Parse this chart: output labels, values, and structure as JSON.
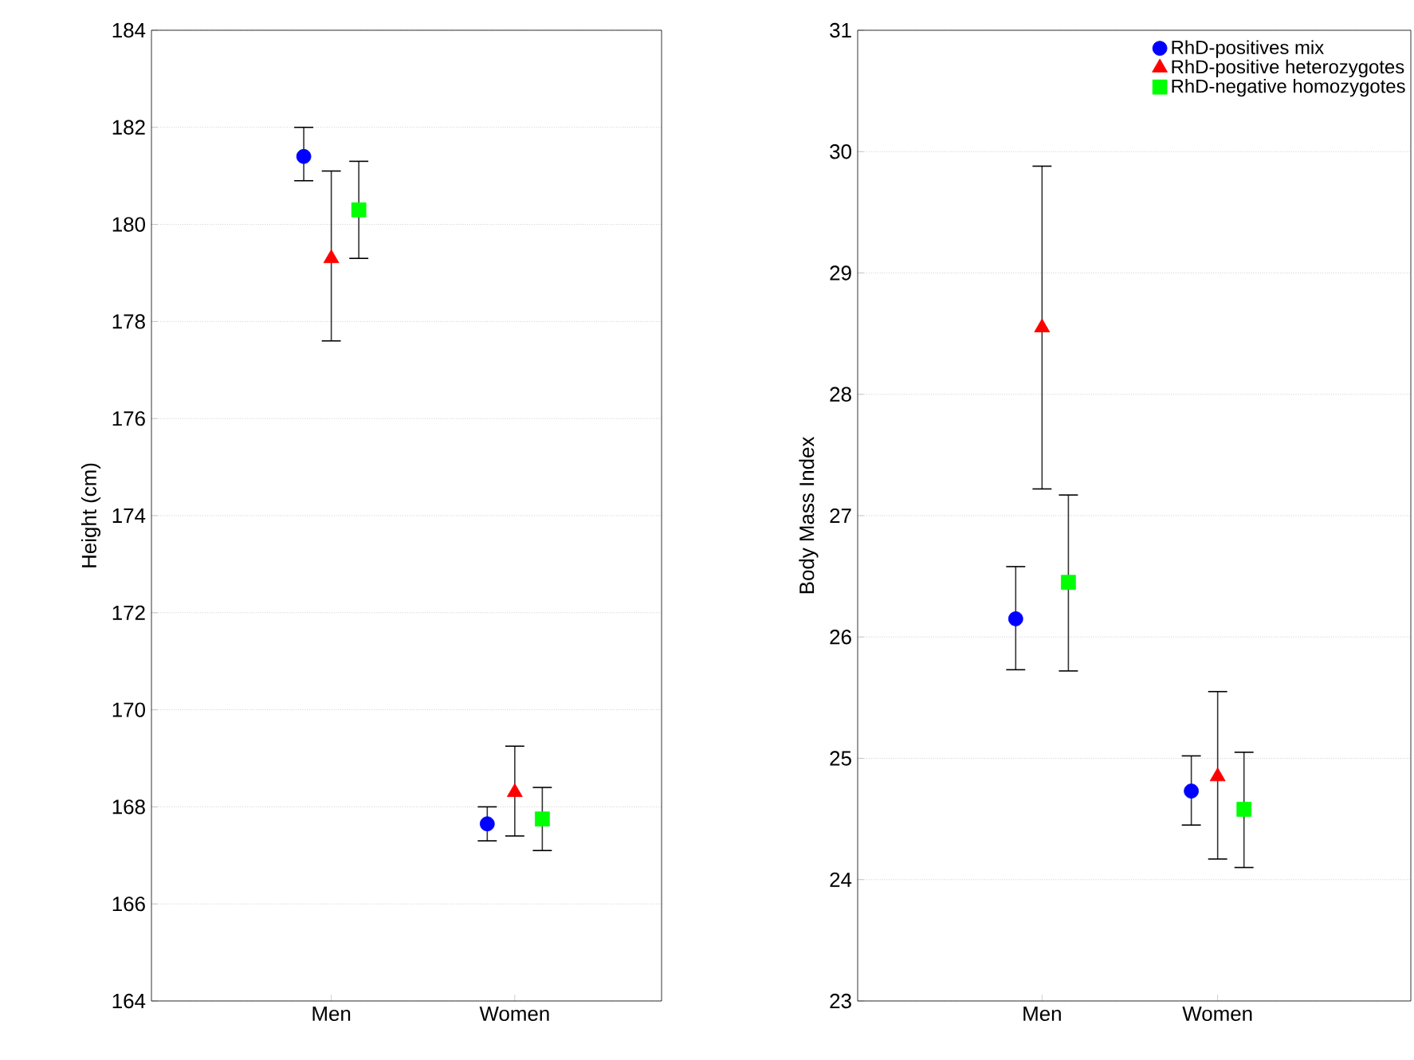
{
  "chart_data": [
    {
      "type": "scatter",
      "ylabel": "Height (cm)",
      "categories": [
        "Men",
        "Women"
      ],
      "ylim": [
        164,
        184
      ],
      "yticks": [
        164,
        166,
        168,
        170,
        172,
        174,
        176,
        178,
        180,
        182,
        184
      ],
      "grid": "y",
      "legend": false,
      "series": [
        {
          "color": "#0000ff",
          "marker": "circle",
          "values": [
            181.4,
            167.65
          ],
          "errors": [
            [
              180.9,
              182.0
            ],
            [
              167.3,
              168.0
            ]
          ]
        },
        {
          "color": "#ff0000",
          "marker": "triangle",
          "values": [
            179.3,
            168.3
          ],
          "errors": [
            [
              177.6,
              181.1
            ],
            [
              167.4,
              169.25
            ]
          ]
        },
        {
          "color": "#00ff00",
          "marker": "square",
          "values": [
            180.3,
            167.75
          ],
          "errors": [
            [
              179.3,
              181.3
            ],
            [
              167.1,
              168.4
            ]
          ]
        }
      ]
    },
    {
      "type": "scatter",
      "ylabel": "Body Mass Index",
      "categories": [
        "Men",
        "Women"
      ],
      "ylim": [
        23,
        31
      ],
      "yticks": [
        23,
        24,
        25,
        26,
        27,
        28,
        29,
        30,
        31
      ],
      "grid": "y",
      "legend": "top right",
      "series": [
        {
          "name": "RhD-positives mix",
          "color": "#0000ff",
          "marker": "circle",
          "values": [
            26.15,
            24.73
          ],
          "errors": [
            [
              25.73,
              26.58
            ],
            [
              24.45,
              25.02
            ]
          ]
        },
        {
          "name": "RhD-positive heterozygotes",
          "color": "#ff0000",
          "marker": "triangle",
          "values": [
            28.55,
            24.85
          ],
          "errors": [
            [
              27.22,
              29.88
            ],
            [
              24.17,
              25.55
            ]
          ]
        },
        {
          "name": "RhD-negative homozygotes",
          "color": "#00ff00",
          "marker": "square",
          "values": [
            26.45,
            24.58
          ],
          "errors": [
            [
              25.72,
              27.17
            ],
            [
              24.1,
              25.05
            ]
          ]
        }
      ]
    }
  ]
}
